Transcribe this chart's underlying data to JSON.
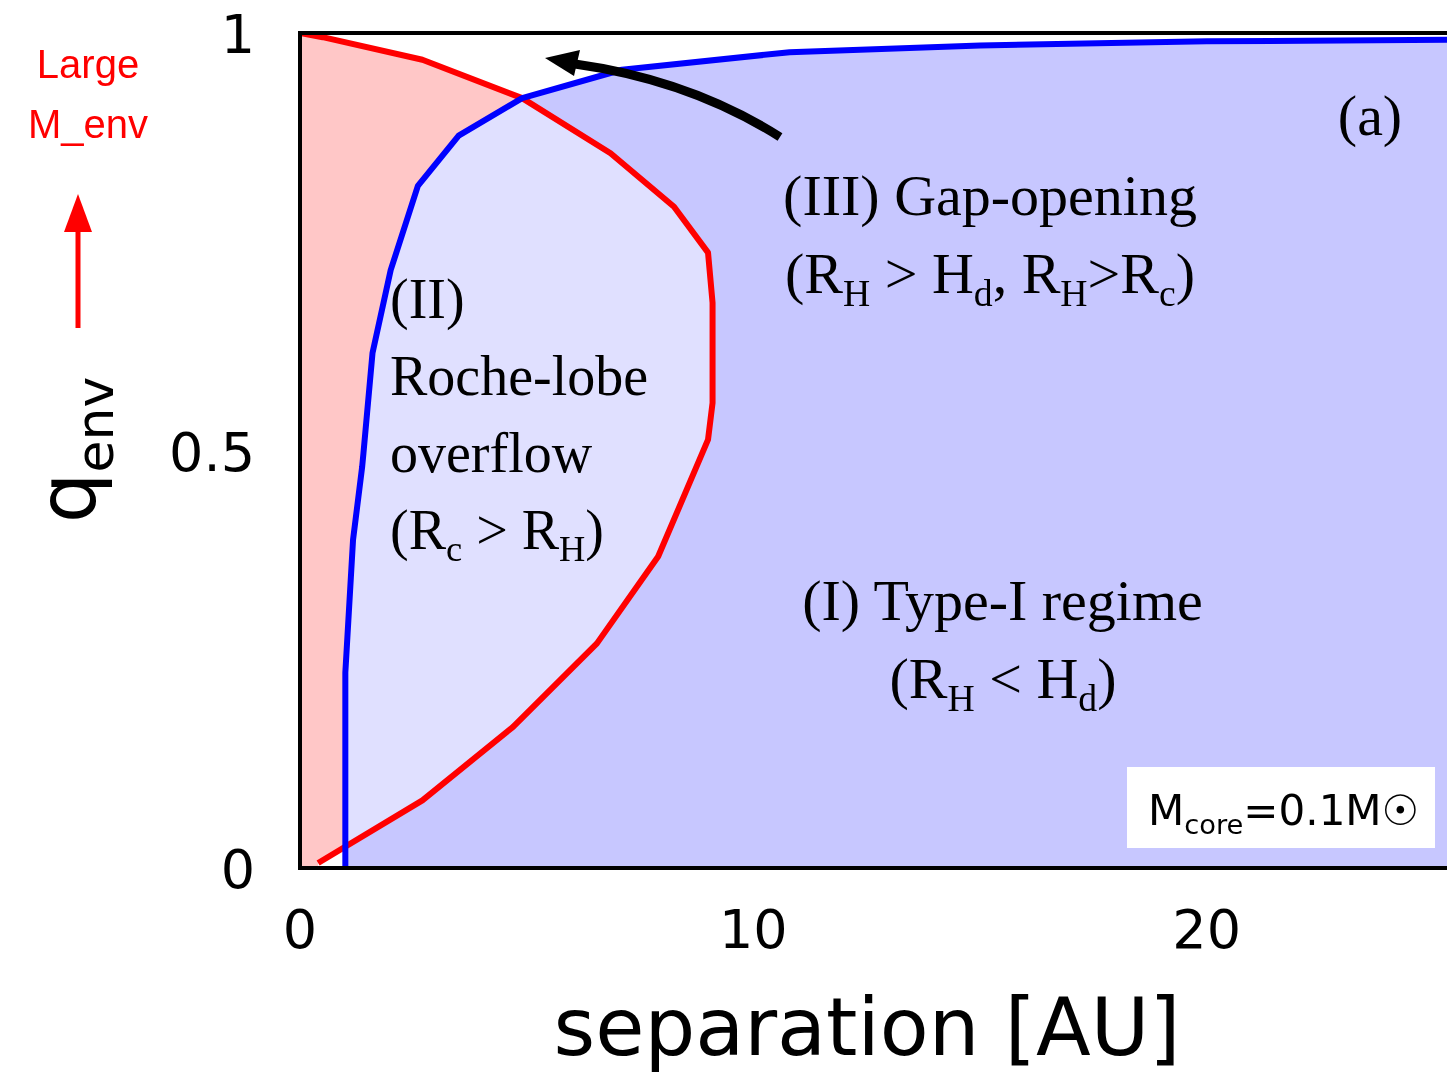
{
  "chart_data": {
    "type": "area",
    "xlabel": "separation [AU]",
    "ylabel": "q$_{env}$",
    "xlim": [
      0,
      25.3
    ],
    "ylim": [
      0,
      1
    ],
    "xticks": [
      0,
      10,
      20
    ],
    "yticks": [
      0,
      0.5,
      1
    ],
    "grid": false,
    "legend": false,
    "marker": "none",
    "line_style": "solid",
    "series": [
      {
        "color": "#0000ff",
        "x": [
          1.0,
          1.0,
          1.17,
          1.37,
          1.4,
          1.6,
          2.0,
          2.6,
          3.5,
          4.9,
          7.1,
          10.8,
          15,
          20,
          25.3
        ],
        "values": [
          0,
          0.234,
          0.393,
          0.48,
          0.497,
          0.617,
          0.716,
          0.817,
          0.877,
          0.922,
          0.956,
          0.977,
          0.985,
          0.99,
          0.992
        ]
      },
      {
        "type": "line",
        "color": "#ff0000",
        "x": [
          0.4,
          2.7,
          4.7,
          6.55,
          7.9,
          9.0,
          9.1,
          9.1,
          9.0,
          8.25,
          6.85,
          4.9,
          2.7,
          0.5,
          0
        ],
        "values": [
          0.006,
          0.081,
          0.169,
          0.269,
          0.373,
          0.513,
          0.557,
          0.677,
          0.737,
          0.792,
          0.856,
          0.922,
          0.968,
          0.995,
          1
        ]
      }
    ],
    "annotations": [
      "(a)",
      "(III) Gap-opening\n(R$_{H}$ > H$_{d}$, R$_{H}$>R$_{c}$)",
      "(II)\nRoche-lobe\noverflow\n(R$_{c}$ > R$_{H}$)",
      "(I) Type-I regime\n(R$_{H}$ < H$_{d}$)",
      "M$_{core}$=0.1M☉",
      "Large\nM_env"
    ]
  }
}
